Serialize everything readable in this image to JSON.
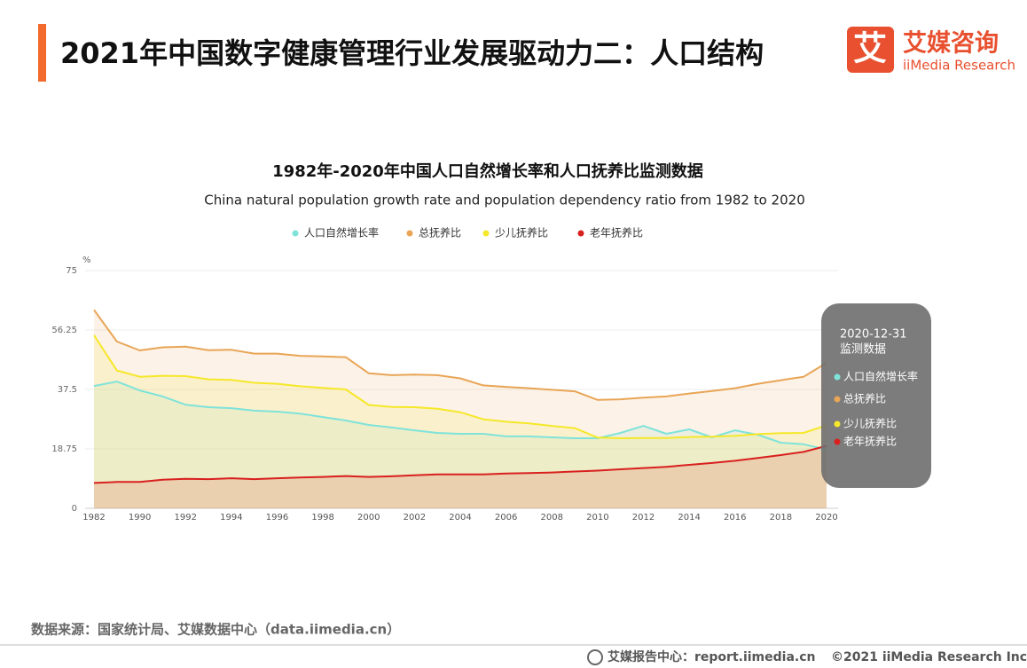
{
  "header": {
    "title": "2021年中国数字健康管理行业发展驱动力二：人口结构",
    "logo_mark": "艾",
    "logo_name": "艾媒咨询",
    "logo_sub": "iiMedia Research"
  },
  "chart_data": {
    "type": "line",
    "title": "1982年-2020年中国人口自然增长率和人口抚养比监测数据",
    "subtitle": "China natural population growth rate and population dependency ratio from 1982  to 2020",
    "y_unit": "%",
    "categories": [
      "1982",
      null,
      "1990",
      null,
      "1992",
      null,
      "1994",
      null,
      "1996",
      null,
      "1998",
      null,
      "2000",
      null,
      "2002",
      null,
      "2004",
      null,
      "2006",
      null,
      "2008",
      null,
      "2010",
      null,
      "2012",
      null,
      "2014",
      null,
      "2016",
      null,
      "2018",
      null,
      "2020"
    ],
    "ylim": [
      0,
      75
    ],
    "yticks": [
      0,
      18.75,
      37.5,
      56.25,
      75
    ],
    "grid": true,
    "legend": "top",
    "series": [
      {
        "name": "人口自然增长率",
        "color": "#7fe3da",
        "values": [
          38.6,
          40,
          37.2,
          35.3,
          32.7,
          31.9,
          31.6,
          30.8,
          30.5,
          29.9,
          28.8,
          27.7,
          26.3,
          25.5,
          24.6,
          23.8,
          23.5,
          23.5,
          22.7,
          22.7,
          22.4,
          22.1,
          22.1,
          23.8,
          26,
          23.5,
          24.9,
          22.4,
          24.6,
          23.2,
          20.7,
          20.2,
          18.5
        ]
      },
      {
        "name": "总抚养比",
        "color": "#e8a556",
        "values": [
          62.6,
          52.6,
          49.8,
          50.8,
          51,
          49.9,
          50,
          48.8,
          48.8,
          48.1,
          47.9,
          47.7,
          42.6,
          42,
          42.2,
          42,
          41,
          38.8,
          38.3,
          37.9,
          37.4,
          36.9,
          34.2,
          34.4,
          34.9,
          35.3,
          36.2,
          37,
          37.9,
          39.3,
          40.4,
          41.5,
          45.9
        ]
      },
      {
        "name": "少儿抚养比",
        "color": "#f5e82a",
        "values": [
          54.6,
          43.5,
          41.5,
          41.8,
          41.7,
          40.7,
          40.5,
          39.6,
          39.3,
          38.5,
          38,
          37.5,
          32.6,
          32,
          31.9,
          31.4,
          30.3,
          28.1,
          27.3,
          26.8,
          26,
          25.3,
          22.3,
          22.1,
          22.2,
          22.2,
          22.5,
          22.6,
          22.9,
          23.4,
          23.7,
          23.8,
          26.2
        ]
      },
      {
        "name": "老年抚养比",
        "color": "#d9201e",
        "values": [
          8,
          8.3,
          8.3,
          9,
          9.3,
          9.2,
          9.5,
          9.2,
          9.5,
          9.7,
          9.9,
          10.2,
          9.9,
          10.1,
          10.4,
          10.7,
          10.7,
          10.7,
          11,
          11.1,
          11.3,
          11.6,
          11.9,
          12.3,
          12.7,
          13.1,
          13.7,
          14.3,
          15,
          15.9,
          16.8,
          17.8,
          19.7
        ]
      }
    ],
    "tooltip": {
      "date": "2020-12-31",
      "label": "监测数据"
    }
  },
  "source": "数据来源：国家统计局、艾媒数据中心（data.iimedia.cn）",
  "footer": {
    "report": "艾媒报告中心：report.iimedia.cn",
    "copyright": "©2021  iiMedia Research  Inc"
  }
}
